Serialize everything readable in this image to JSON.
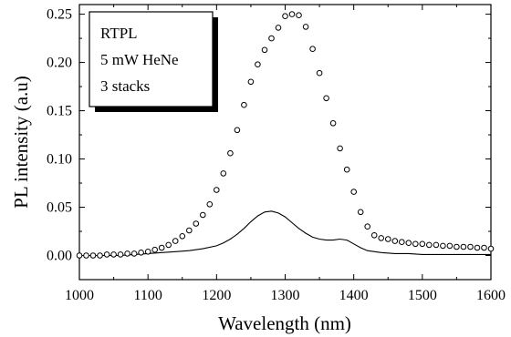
{
  "chart_data": {
    "type": "scatter",
    "xlabel": "Wavelength (nm)",
    "ylabel": "PL intensity (a.u)",
    "xlim": [
      1000,
      1600
    ],
    "ylim": [
      -0.025,
      0.26
    ],
    "x_ticks": [
      1000,
      1100,
      1200,
      1300,
      1400,
      1500,
      1600
    ],
    "x_tick_labels": [
      "1000",
      "1100",
      "1200",
      "1300",
      "1400",
      "1500",
      "1600"
    ],
    "y_ticks": [
      0.0,
      0.05,
      0.1,
      0.15,
      0.2,
      0.25
    ],
    "y_tick_labels": [
      "0.00",
      "0.05",
      "0.10",
      "0.15",
      "0.20",
      "0.25"
    ],
    "grid": false,
    "annotation_lines": [
      "RTPL",
      "5 mW HeNe",
      "3 stacks"
    ],
    "annotation_position": "top-left",
    "series": [
      {
        "style": "open-circle-markers",
        "color": "#000000",
        "x": [
          1000,
          1010,
          1020,
          1030,
          1040,
          1050,
          1060,
          1070,
          1080,
          1090,
          1100,
          1110,
          1120,
          1130,
          1140,
          1150,
          1160,
          1170,
          1180,
          1190,
          1200,
          1210,
          1220,
          1230,
          1240,
          1250,
          1260,
          1270,
          1280,
          1290,
          1300,
          1310,
          1320,
          1330,
          1340,
          1350,
          1360,
          1370,
          1380,
          1390,
          1400,
          1410,
          1420,
          1430,
          1440,
          1450,
          1460,
          1470,
          1480,
          1490,
          1500,
          1510,
          1520,
          1530,
          1540,
          1550,
          1560,
          1570,
          1580,
          1590,
          1600
        ],
        "y": [
          0.0,
          0.0,
          0.0,
          0.0,
          0.001,
          0.001,
          0.001,
          0.002,
          0.002,
          0.003,
          0.004,
          0.006,
          0.008,
          0.011,
          0.015,
          0.02,
          0.026,
          0.033,
          0.042,
          0.053,
          0.068,
          0.085,
          0.106,
          0.13,
          0.156,
          0.18,
          0.198,
          0.213,
          0.225,
          0.236,
          0.248,
          0.25,
          0.249,
          0.237,
          0.214,
          0.189,
          0.163,
          0.137,
          0.111,
          0.089,
          0.066,
          0.045,
          0.03,
          0.021,
          0.018,
          0.017,
          0.015,
          0.014,
          0.013,
          0.012,
          0.012,
          0.011,
          0.011,
          0.01,
          0.01,
          0.009,
          0.009,
          0.009,
          0.008,
          0.008,
          0.007
        ]
      },
      {
        "style": "solid-line",
        "color": "#000000",
        "x": [
          1000,
          1020,
          1040,
          1060,
          1080,
          1100,
          1120,
          1140,
          1160,
          1180,
          1200,
          1210,
          1220,
          1230,
          1240,
          1250,
          1260,
          1270,
          1280,
          1290,
          1300,
          1310,
          1320,
          1330,
          1340,
          1350,
          1360,
          1370,
          1380,
          1390,
          1400,
          1410,
          1420,
          1440,
          1460,
          1480,
          1500,
          1550,
          1600
        ],
        "y": [
          0.0,
          0.0,
          0.0,
          0.0,
          0.001,
          0.002,
          0.003,
          0.004,
          0.005,
          0.007,
          0.01,
          0.013,
          0.017,
          0.022,
          0.028,
          0.035,
          0.041,
          0.045,
          0.046,
          0.044,
          0.04,
          0.034,
          0.028,
          0.023,
          0.019,
          0.017,
          0.016,
          0.016,
          0.017,
          0.016,
          0.012,
          0.008,
          0.005,
          0.003,
          0.002,
          0.002,
          0.001,
          0.001,
          0.001
        ]
      }
    ]
  }
}
